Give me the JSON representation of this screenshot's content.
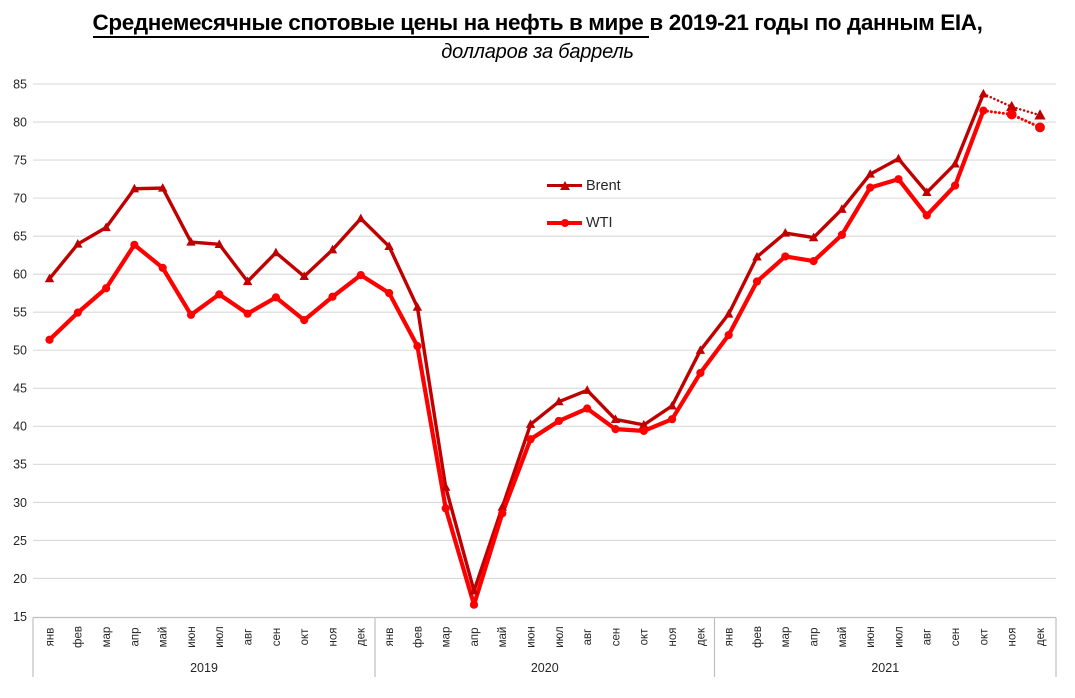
{
  "title": {
    "line1_underlined": "Среднемесячные спотовые цены на нефть в мире",
    "line1_rest": "в 2019-21 годы по данным EIA,",
    "line2": "долларов за баррель"
  },
  "legend": {
    "items": [
      {
        "label": "Brent",
        "marker": "triangle-icon",
        "color": "#C00000"
      },
      {
        "label": "WTI",
        "marker": "circle-icon",
        "color": "#FF0000"
      }
    ]
  },
  "colors": {
    "brent": "#C00000",
    "wti": "#FF0000",
    "gridline": "#D9D9D9",
    "axis": "#BFBFBF",
    "tick_text": "#262626",
    "title_text": "#000000"
  },
  "chart_data": {
    "type": "line",
    "title": "Среднемесячные спотовые цены на нефть в мире в 2019-21 годы по данным EIA, долларов за баррель",
    "ylabel": "долларов за баррель",
    "months": [
      "янв",
      "фев",
      "мар",
      "апр",
      "май",
      "июн",
      "июл",
      "авг",
      "сен",
      "окт",
      "ноя",
      "дек"
    ],
    "year_groups": [
      "2019",
      "2020",
      "2021"
    ],
    "ylim": [
      15,
      85
    ],
    "ytick_step": 5,
    "grid": true,
    "legend_position": "inside-upper-middle",
    "forecast_dotted_from_index": 33,
    "series": [
      {
        "name": "Brent",
        "color": "#C00000",
        "marker": "triangle",
        "values": [
          59.41,
          63.96,
          66.14,
          71.23,
          71.32,
          64.22,
          63.92,
          59.04,
          62.83,
          59.71,
          63.21,
          67.31,
          63.65,
          55.66,
          32.01,
          18.38,
          29.38,
          40.27,
          43.24,
          44.74,
          40.91,
          40.19,
          42.69,
          49.99,
          54.77,
          62.28,
          65.41,
          64.81,
          68.53,
          73.16,
          75.17,
          70.75,
          74.49,
          83.7,
          82.0,
          80.9
        ]
      },
      {
        "name": "WTI",
        "color": "#FF0000",
        "marker": "circle",
        "values": [
          51.38,
          54.95,
          58.15,
          63.86,
          60.83,
          54.66,
          57.35,
          54.81,
          56.95,
          53.96,
          57.03,
          59.88,
          57.52,
          50.54,
          29.21,
          16.55,
          28.56,
          38.31,
          40.71,
          42.34,
          39.63,
          39.4,
          40.94,
          47.02,
          52.0,
          59.04,
          62.33,
          61.72,
          65.17,
          71.38,
          72.49,
          67.73,
          71.65,
          81.5,
          81.0,
          79.3
        ]
      }
    ]
  }
}
